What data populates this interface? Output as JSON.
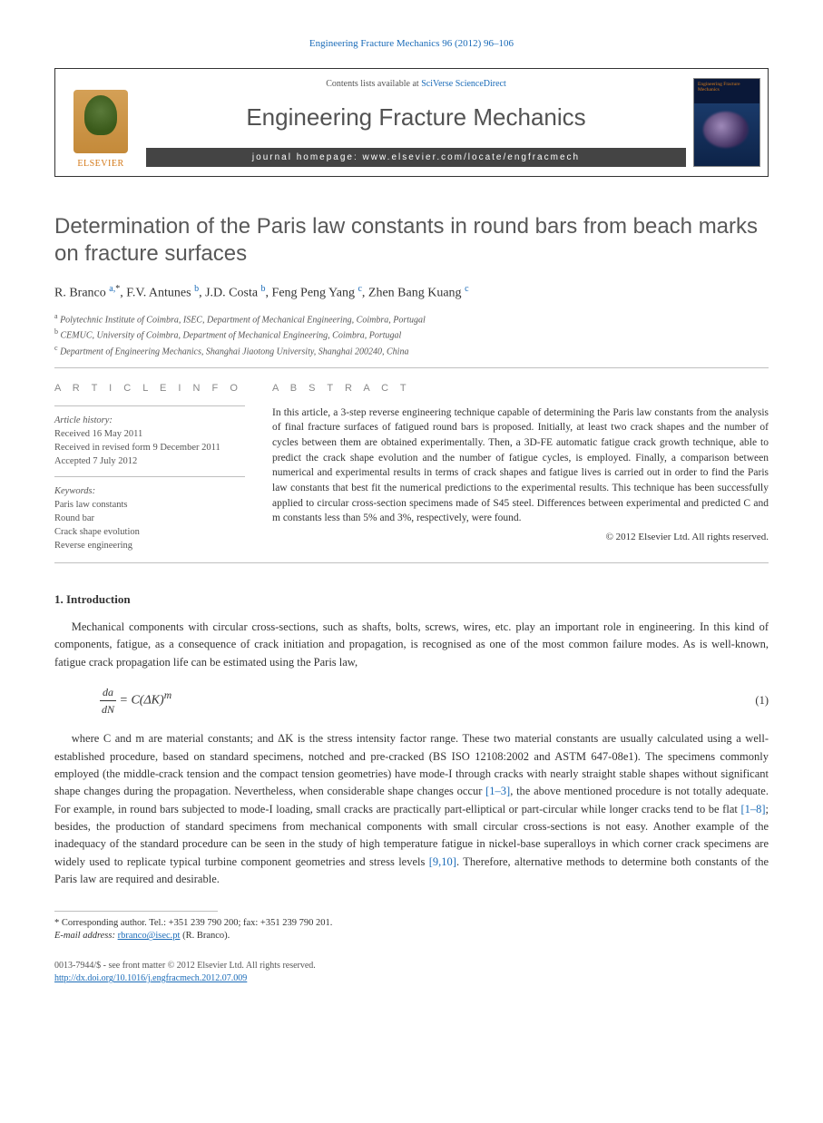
{
  "journal_ref": {
    "prefix": "",
    "linked": "Engineering Fracture Mechanics 96 (2012) 96–106",
    "link_color": "#1a6bb8"
  },
  "journal_header": {
    "elsevier_label": "ELSEVIER",
    "contents_prefix": "Contents lists available at ",
    "contents_link": "SciVerse ScienceDirect",
    "journal_title": "Engineering Fracture Mechanics",
    "homepage_label": "journal homepage: ",
    "homepage_url": "www.elsevier.com/locate/engfracmech",
    "cover_text": "Engineering\nFracture\nMechanics"
  },
  "article": {
    "title": "Determination of the Paris law constants in round bars from beach marks on fracture surfaces",
    "authors_html": "R. Branco <sup>a,</sup><sup class='star'>*</sup>, F.V. Antunes <sup>b</sup>, J.D. Costa <sup>b</sup>, Feng Peng Yang <sup>c</sup>, Zhen Bang Kuang <sup>c</sup>",
    "affiliations": [
      {
        "sup": "a",
        "text": "Polytechnic Institute of Coimbra, ISEC, Department of Mechanical Engineering, Coimbra, Portugal"
      },
      {
        "sup": "b",
        "text": "CEMUC, University of Coimbra, Department of Mechanical Engineering, Coimbra, Portugal"
      },
      {
        "sup": "c",
        "text": "Department of Engineering Mechanics, Shanghai Jiaotong University, Shanghai 200240, China"
      }
    ]
  },
  "article_info": {
    "heading": "A R T I C L E   I N F O",
    "history_label": "Article history:",
    "history": [
      "Received 16 May 2011",
      "Received in revised form 9 December 2011",
      "Accepted 7 July 2012"
    ],
    "keywords_label": "Keywords:",
    "keywords": [
      "Paris law constants",
      "Round bar",
      "Crack shape evolution",
      "Reverse engineering"
    ]
  },
  "abstract": {
    "heading": "A B S T R A C T",
    "text": "In this article, a 3-step reverse engineering technique capable of determining the Paris law constants from the analysis of final fracture surfaces of fatigued round bars is proposed. Initially, at least two crack shapes and the number of cycles between them are obtained experimentally. Then, a 3D-FE automatic fatigue crack growth technique, able to predict the crack shape evolution and the number of fatigue cycles, is employed. Finally, a comparison between numerical and experimental results in terms of crack shapes and fatigue lives is carried out in order to find the Paris law constants that best fit the numerical predictions to the experimental results. This technique has been successfully applied to circular cross-section specimens made of S45 steel. Differences between experimental and predicted C and m constants less than 5% and 3%, respectively, were found.",
    "copyright": "© 2012 Elsevier Ltd. All rights reserved."
  },
  "body": {
    "section_number": "1.",
    "section_title": "Introduction",
    "para1": "Mechanical components with circular cross-sections, such as shafts, bolts, screws, wires, etc. play an important role in engineering. In this kind of components, fatigue, as a consequence of crack initiation and propagation, is recognised as one of the most common failure modes. As is well-known, fatigue crack propagation life can be estimated using the Paris law,",
    "equation": {
      "num": "da",
      "den": "dN",
      "rhs": " = C(ΔK)",
      "sup": "m",
      "number": "(1)"
    },
    "para2_parts": [
      {
        "t": "text",
        "v": "where C and m are material constants; and ΔK is the stress intensity factor range. These two material constants are usually calculated using a well-established procedure, based on standard specimens, notched and pre-cracked (BS ISO 12108:2002 and ASTM 647-08e1). The specimens commonly employed (the middle-crack tension and the compact tension geometries) have mode-I through cracks with nearly straight stable shapes without significant shape changes during the propagation. Nevertheless, when considerable shape changes occur "
      },
      {
        "t": "cite",
        "v": "[1–3]"
      },
      {
        "t": "text",
        "v": ", the above mentioned procedure is not totally adequate. For example, in round bars subjected to mode-I loading, small cracks are practically part-elliptical or part-circular while longer cracks tend to be flat "
      },
      {
        "t": "cite",
        "v": "[1–8]"
      },
      {
        "t": "text",
        "v": "; besides, the production of standard specimens from mechanical components with small circular cross-sections is not easy. Another example of the inadequacy of the standard procedure can be seen in the study of high temperature fatigue in nickel-base superalloys in which corner crack specimens are widely used to replicate typical turbine component geometries and stress levels "
      },
      {
        "t": "cite",
        "v": "[9,10]"
      },
      {
        "t": "text",
        "v": ". Therefore, alternative methods to determine both constants of the Paris law are required and desirable."
      }
    ]
  },
  "footnote": {
    "corr": "* Corresponding author. Tel.: +351 239 790 200; fax: +351 239 790 201.",
    "email_label": "E-mail address:",
    "email": "rbranco@isec.pt",
    "email_person": "(R. Branco)."
  },
  "bottom": {
    "issn_line": "0013-7944/$ - see front matter © 2012 Elsevier Ltd. All rights reserved.",
    "doi": "http://dx.doi.org/10.1016/j.engfracmech.2012.07.009"
  },
  "colors": {
    "link": "#1a6bb8",
    "text": "#333333",
    "muted": "#666666",
    "rule": "#bfbfbf",
    "heading_grey": "#585858",
    "dark_bar": "#444444",
    "elsevier_orange": "#d47a1a"
  },
  "typography": {
    "body_font": "Georgia, Times New Roman, serif",
    "sans_font": "Arial, sans-serif",
    "title_fontsize_pt": 24,
    "journal_title_fontsize_pt": 26,
    "body_fontsize_pt": 12.5,
    "abstract_fontsize_pt": 11.5,
    "info_fontsize_pt": 10.5
  }
}
